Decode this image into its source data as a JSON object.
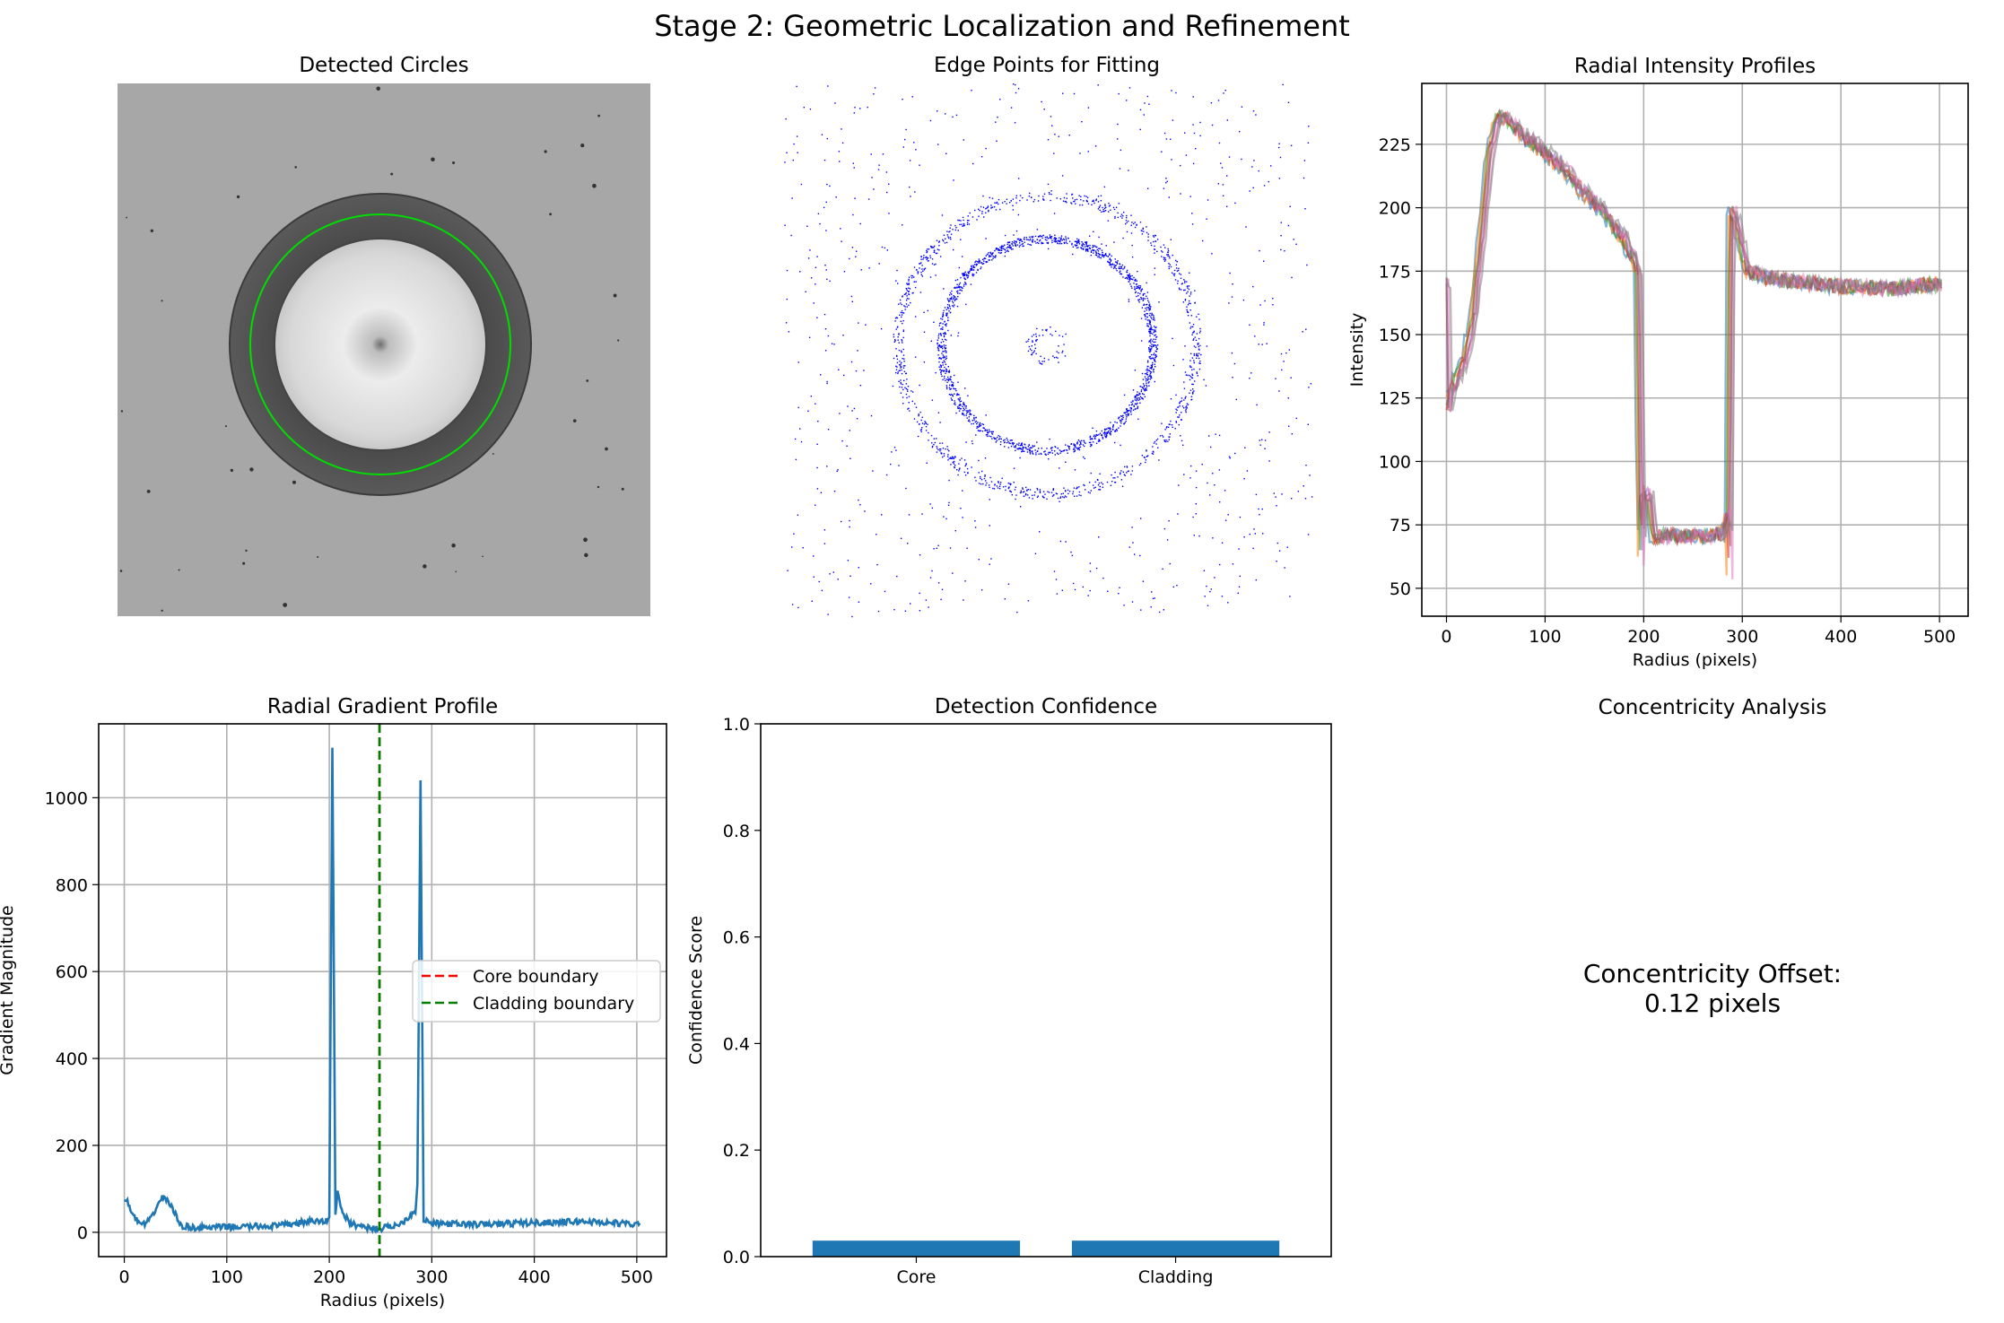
{
  "figure": {
    "suptitle": "Stage 2: Geometric Localization and Refinement"
  },
  "colors": {
    "blue": "#1f77b4",
    "green": "#00cc00",
    "red": "#ff0000",
    "darkgreen": "#008000",
    "points": "#0000ff"
  },
  "panels": {
    "detected_circles": {
      "title": "Detected Circles",
      "kind": "image"
    },
    "edge_points": {
      "title": "Edge Points for Fitting",
      "kind": "scatter-image"
    },
    "concentricity": {
      "title": "Concentricity Analysis",
      "line1": "Concentricity Offset:",
      "line2": "0.12 pixels"
    }
  },
  "chart_data": [
    {
      "id": "radial_intensity",
      "type": "line",
      "title": "Radial Intensity Profiles",
      "xlabel": "Radius (pixels)",
      "ylabel": "Intensity",
      "xlim": [
        -25,
        529
      ],
      "ylim": [
        39,
        249
      ],
      "xticks": [
        0,
        100,
        200,
        300,
        400,
        500
      ],
      "yticks": [
        50,
        75,
        100,
        125,
        150,
        175,
        200,
        225
      ],
      "grid": true,
      "series_count": 8,
      "profile_template": [
        [
          0,
          118
        ],
        [
          5,
          128
        ],
        [
          12,
          134
        ],
        [
          20,
          142
        ],
        [
          28,
          160
        ],
        [
          36,
          190
        ],
        [
          44,
          222
        ],
        [
          52,
          236
        ],
        [
          60,
          235
        ],
        [
          80,
          228
        ],
        [
          100,
          222
        ],
        [
          120,
          215
        ],
        [
          140,
          206
        ],
        [
          160,
          198
        ],
        [
          180,
          188
        ],
        [
          195,
          175
        ],
        [
          197,
          60
        ],
        [
          200,
          88
        ],
        [
          206,
          86
        ],
        [
          210,
          70
        ],
        [
          230,
          71
        ],
        [
          260,
          70
        ],
        [
          280,
          72
        ],
        [
          285,
          80
        ],
        [
          287,
          55
        ],
        [
          288,
          198
        ],
        [
          292,
          198
        ],
        [
          305,
          175
        ],
        [
          330,
          172
        ],
        [
          400,
          169
        ],
        [
          450,
          168
        ],
        [
          500,
          170
        ]
      ]
    },
    {
      "id": "radial_gradient",
      "type": "line",
      "title": "Radial Gradient Profile",
      "xlabel": "Radius (pixels)",
      "ylabel": "Gradient Magnitude",
      "xlim": [
        -25,
        529
      ],
      "ylim": [
        -56,
        1170
      ],
      "xticks": [
        0,
        100,
        200,
        300,
        400,
        500
      ],
      "yticks": [
        0,
        200,
        400,
        600,
        800,
        1000
      ],
      "grid": true,
      "series": [
        {
          "name": "",
          "key_points": [
            [
              0,
              73
            ],
            [
              4,
              68
            ],
            [
              8,
              40
            ],
            [
              14,
              22
            ],
            [
              20,
              18
            ],
            [
              26,
              30
            ],
            [
              32,
              62
            ],
            [
              38,
              82
            ],
            [
              44,
              68
            ],
            [
              50,
              40
            ],
            [
              55,
              15
            ],
            [
              70,
              10
            ],
            [
              100,
              12
            ],
            [
              150,
              15
            ],
            [
              180,
              25
            ],
            [
              195,
              25
            ],
            [
              200,
              30
            ],
            [
              203,
              1115
            ],
            [
              206,
              40
            ],
            [
              208,
              100
            ],
            [
              212,
              50
            ],
            [
              220,
              20
            ],
            [
              240,
              10
            ],
            [
              250,
              8
            ],
            [
              270,
              20
            ],
            [
              284,
              50
            ],
            [
              286,
              110
            ],
            [
              289,
              1040
            ],
            [
              292,
              30
            ],
            [
              300,
              20
            ],
            [
              350,
              18
            ],
            [
              400,
              22
            ],
            [
              450,
              25
            ],
            [
              503,
              18
            ]
          ]
        }
      ],
      "vlines": [
        {
          "name": "Core boundary",
          "x": 249,
          "color": "red"
        },
        {
          "name": "Cladding boundary",
          "x": 249,
          "color": "darkgreen"
        }
      ],
      "legend": {
        "position": "center-right",
        "entries": [
          "Core boundary",
          "Cladding boundary"
        ]
      }
    },
    {
      "id": "detection_confidence",
      "type": "bar",
      "title": "Detection Confidence",
      "ylabel": "Confidence Score",
      "categories": [
        "Core",
        "Cladding"
      ],
      "values": [
        0.03,
        0.03
      ],
      "ylim": [
        0,
        1.0
      ],
      "yticks": [
        0.0,
        0.2,
        0.4,
        0.6,
        0.8,
        1.0
      ],
      "grid": false
    }
  ]
}
